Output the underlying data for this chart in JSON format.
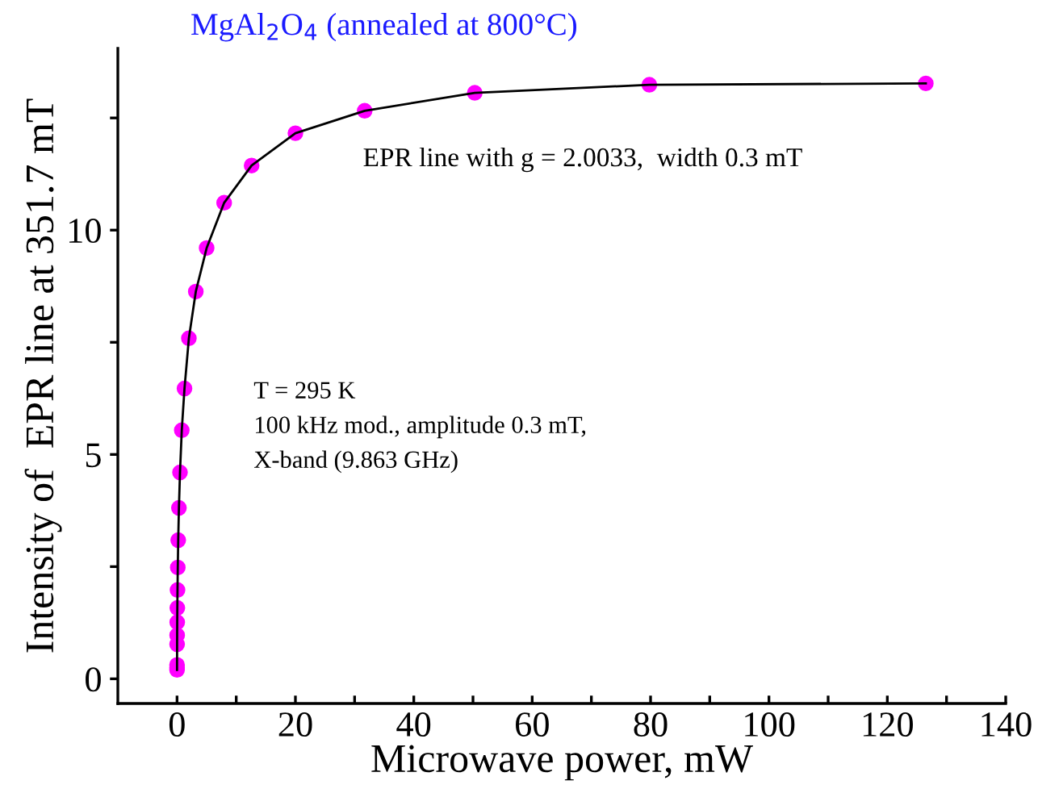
{
  "chart_data": {
    "type": "line",
    "title": "MgAl$_{2}$O$_{4}$ (annealed at 800°C)",
    "xlabel": "Microwave power, mW",
    "ylabel": "Intensity of  EPR line at 351.7 mT",
    "annotations": [
      "EPR line with g = 2.0033,  width 0.3 mT",
      "T = 295 K",
      "100 kHz mod., amplitude 0.3 mT,",
      "X-band (9.863 GHz)"
    ],
    "x": [
      0.0008,
      0.00126,
      0.002,
      0.0126,
      0.02,
      0.032,
      0.05,
      0.08,
      0.126,
      0.2,
      0.32,
      0.5,
      0.8,
      1.26,
      2.0,
      3.17,
      5.0,
      7.96,
      12.6,
      20,
      31.7,
      50.3,
      79.8,
      126.5
    ],
    "series": [
      {
        "color": "#ff00ff",
        "values": [
          0.2,
          0.25,
          0.31,
          0.77,
          0.97,
          1.26,
          1.58,
          1.98,
          2.48,
          3.09,
          3.81,
          4.6,
          5.54,
          6.47,
          7.59,
          8.63,
          9.6,
          10.61,
          11.44,
          12.16,
          12.66,
          13.06,
          13.24,
          13.27
        ]
      }
    ],
    "marker": "circle",
    "line_style": "solid",
    "grid": false,
    "legend": false,
    "xlim": [
      -10,
      140
    ],
    "ylim": [
      -0.55,
      14.05
    ],
    "xticks": [
      0,
      {
        "value": 10,
        "label": null
      },
      20,
      {
        "value": 30,
        "label": null
      },
      40,
      {
        "value": 50,
        "label": null
      },
      60,
      {
        "value": 70,
        "label": null
      },
      80,
      {
        "value": 90,
        "label": null
      },
      100,
      {
        "value": 110,
        "label": null
      },
      120,
      {
        "value": 130,
        "label": null
      },
      140
    ],
    "yticks": [
      0,
      {
        "value": 2.5,
        "label": null
      },
      5,
      {
        "value": 7.5,
        "label": null
      },
      10,
      {
        "value": 12.5,
        "label": null
      }
    ]
  }
}
